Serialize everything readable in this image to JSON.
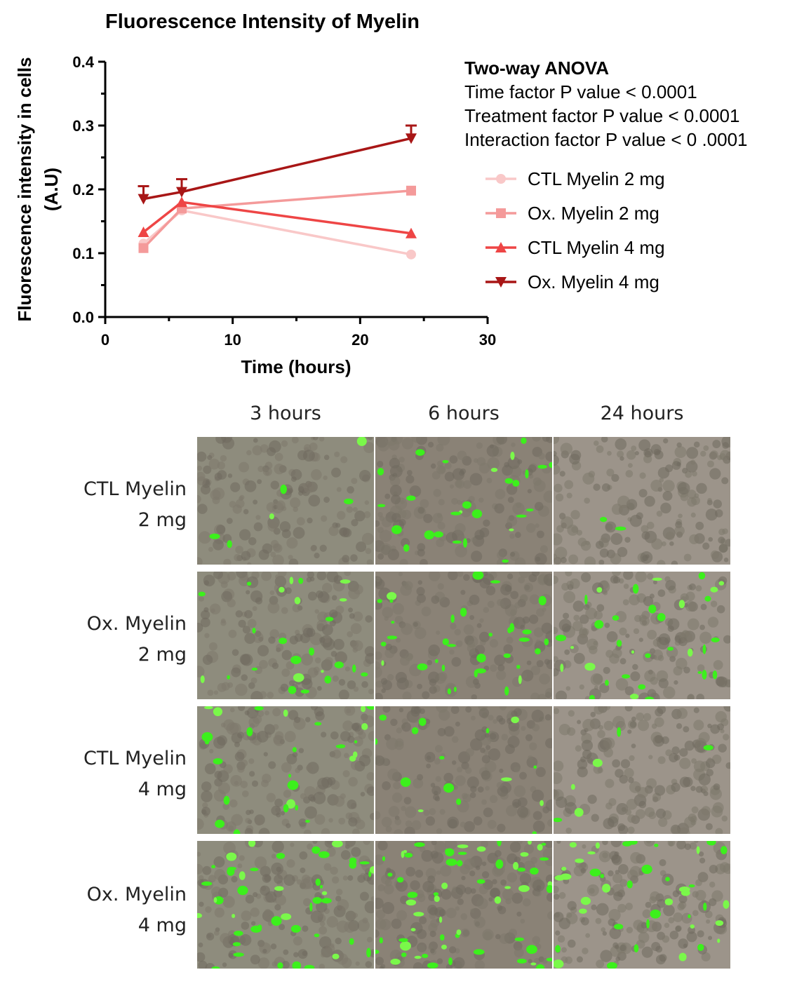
{
  "chart_data": {
    "type": "line",
    "title": "Fluorescence Intensity of Myelin",
    "xlabel": "Time (hours)",
    "ylabel_line1": "Fluorescence intensity in cells",
    "ylabel_line2": "(A.U)",
    "xlim": [
      0,
      30
    ],
    "ylim": [
      0.0,
      0.4
    ],
    "xticks": [
      "0",
      "10",
      "20",
      "30"
    ],
    "yticks": [
      "0.0",
      "0.1",
      "0.2",
      "0.3",
      "0.4"
    ],
    "x": [
      3,
      6,
      24
    ],
    "series": [
      {
        "name": "CTL Myelin 2 mg",
        "values": [
          0.115,
          0.167,
          0.098
        ],
        "errors": [
          0.0,
          0.0,
          0.0
        ],
        "color": "#f9c8c8",
        "marker": "circle"
      },
      {
        "name": "Ox. Myelin 2 mg",
        "values": [
          0.108,
          0.17,
          0.198
        ],
        "errors": [
          0.0,
          0.0,
          0.0
        ],
        "color": "#f49a9a",
        "marker": "square"
      },
      {
        "name": "CTL Myelin 4 mg",
        "values": [
          0.133,
          0.18,
          0.131
        ],
        "errors": [
          0.0,
          0.0,
          0.0
        ],
        "color": "#ee4545",
        "marker": "triangle-up"
      },
      {
        "name": "Ox. Myelin 4 mg",
        "values": [
          0.185,
          0.196,
          0.28
        ],
        "errors": [
          0.02,
          0.02,
          0.02
        ],
        "color": "#a81616",
        "marker": "triangle-down"
      }
    ],
    "grid": false,
    "legend_position": "right"
  },
  "stats": {
    "title": "Two-way ANOVA",
    "lines": [
      "Time factor P value < 0.0001",
      "Treatment factor P value < 0.0001",
      "Interaction factor P value < 0 .0001"
    ]
  },
  "panel": {
    "columns": [
      "3 hours",
      "6 hours",
      "24 hours"
    ],
    "rows": [
      {
        "line1": "CTL Myelin",
        "line2": "2 mg"
      },
      {
        "line1": "Ox. Myelin",
        "line2": "2 mg"
      },
      {
        "line1": "CTL Myelin",
        "line2": "4 mg"
      },
      {
        "line1": "Ox. Myelin",
        "line2": "4 mg"
      }
    ],
    "green_density": [
      [
        0.1,
        0.45,
        0.04
      ],
      [
        0.4,
        0.55,
        0.55
      ],
      [
        0.45,
        0.25,
        0.1
      ],
      [
        0.75,
        1.0,
        0.7
      ]
    ],
    "background_colors": [
      "#8e8c7d",
      "#8a8276",
      "#9c948a"
    ]
  }
}
